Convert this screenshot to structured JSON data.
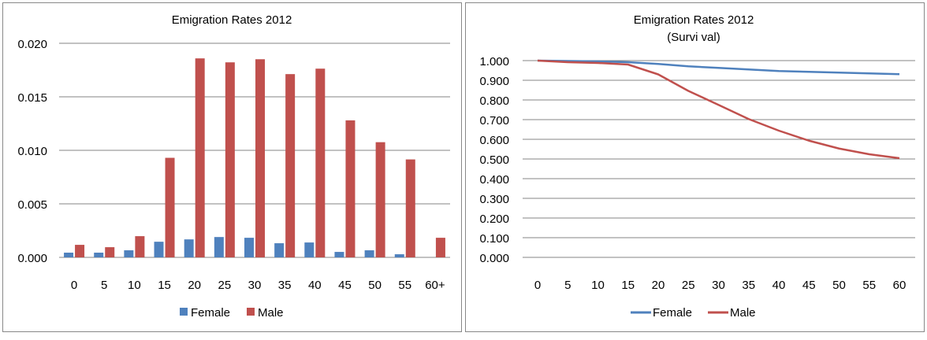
{
  "chart_data": [
    {
      "type": "bar",
      "title": "Emigration Rates 2012",
      "xlabel": "",
      "ylabel": "",
      "categories": [
        "0",
        "5",
        "10",
        "15",
        "20",
        "25",
        "30",
        "35",
        "40",
        "45",
        "50",
        "55",
        "60+"
      ],
      "ylim": [
        0,
        0.02
      ],
      "yticks": [
        "0.000",
        "0.005",
        "0.010",
        "0.015",
        "0.020"
      ],
      "ytick_values": [
        0,
        0.005,
        0.01,
        0.015,
        0.02
      ],
      "grid": true,
      "legend_position": "bottom",
      "series": [
        {
          "name": "Female",
          "color": "#4f81bd",
          "values": [
            0.00044,
            0.00044,
            0.00066,
            0.00146,
            0.00168,
            0.0019,
            0.00183,
            0.00132,
            0.00139,
            0.00051,
            0.00066,
            0.00029,
            0
          ]
        },
        {
          "name": "Male",
          "color": "#c0504d",
          "values": [
            0.00117,
            0.00095,
            0.00198,
            0.0093,
            0.01859,
            0.01822,
            0.01851,
            0.01712,
            0.01763,
            0.0128,
            0.01076,
            0.00915,
            0.00183
          ]
        }
      ]
    },
    {
      "type": "line",
      "title": "Emigration Rates 2012",
      "subtitle": "(Survi val)",
      "xlabel": "",
      "ylabel": "",
      "categories": [
        "0",
        "5",
        "10",
        "15",
        "20",
        "25",
        "30",
        "35",
        "40",
        "45",
        "50",
        "55",
        "60"
      ],
      "ylim": [
        0,
        1
      ],
      "yticks": [
        "0.000",
        "0.100",
        "0.200",
        "0.300",
        "0.400",
        "0.500",
        "0.600",
        "0.700",
        "0.800",
        "0.900",
        "1.000"
      ],
      "ytick_values": [
        0,
        0.1,
        0.2,
        0.3,
        0.4,
        0.5,
        0.6,
        0.7,
        0.8,
        0.9,
        1.0
      ],
      "grid": true,
      "legend_position": "bottom",
      "series": [
        {
          "name": "Female",
          "color": "#4f81bd",
          "values": [
            1.0,
            0.998,
            0.996,
            0.992,
            0.983,
            0.971,
            0.963,
            0.955,
            0.947,
            0.943,
            0.939,
            0.935,
            0.931
          ]
        },
        {
          "name": "Male",
          "color": "#c0504d",
          "values": [
            1.0,
            0.992,
            0.988,
            0.98,
            0.93,
            0.846,
            0.775,
            0.703,
            0.644,
            0.593,
            0.553,
            0.524,
            0.504
          ]
        }
      ]
    }
  ]
}
